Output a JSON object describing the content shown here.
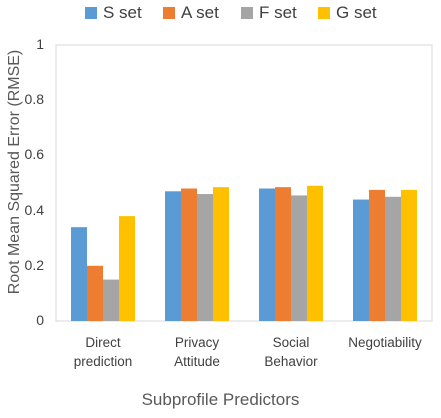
{
  "chart_data": {
    "type": "bar",
    "categories": [
      [
        "Direct",
        "prediction"
      ],
      [
        "Privacy",
        "Attitude"
      ],
      [
        "Social",
        "Behavior"
      ],
      [
        "Negotiability"
      ]
    ],
    "series": [
      {
        "name": "S set",
        "color": "#5B9BD5",
        "values": [
          0.34,
          0.47,
          0.48,
          0.44
        ]
      },
      {
        "name": "A set",
        "color": "#ED7D31",
        "values": [
          0.2,
          0.48,
          0.485,
          0.475
        ]
      },
      {
        "name": "F set",
        "color": "#A5A5A5",
        "values": [
          0.15,
          0.46,
          0.455,
          0.45
        ]
      },
      {
        "name": "G set",
        "color": "#FFC000",
        "values": [
          0.38,
          0.485,
          0.49,
          0.475
        ]
      }
    ],
    "xlabel": "Subprofile Predictors",
    "ylabel": "Root Mean Squared  Error (RMSE)",
    "ylim": [
      0,
      1
    ],
    "yticks": [
      "0",
      "0.2",
      "0.4",
      "0.6",
      "0.8",
      "1"
    ],
    "grid": false,
    "legend": "top"
  }
}
